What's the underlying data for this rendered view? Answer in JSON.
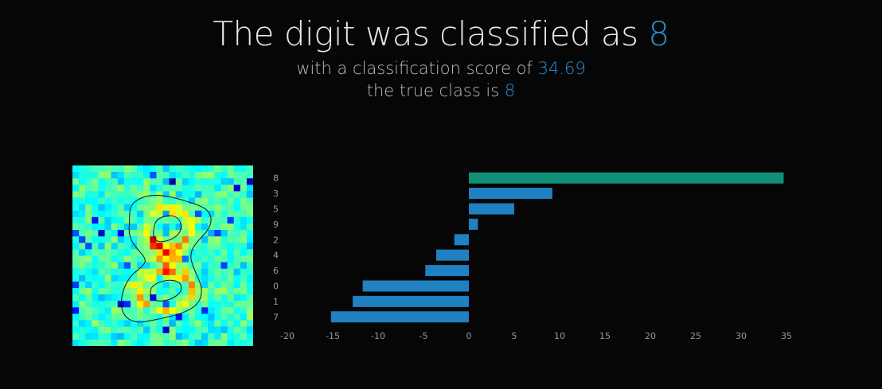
{
  "header": {
    "title_prefix": "The digit was classified as ",
    "predicted_class": "8",
    "score_prefix": "with a classification score of ",
    "score": "34.69",
    "true_prefix": "the true class is ",
    "true_class": "8"
  },
  "colors": {
    "accent": "#2b8fd0",
    "bar_default": "#1f80c2",
    "bar_top": "#109177",
    "tick_text": "#9a9a9a",
    "background": "#060606"
  },
  "chart_data": {
    "type": "bar",
    "orientation": "horizontal",
    "categories": [
      "8",
      "3",
      "5",
      "9",
      "2",
      "4",
      "6",
      "0",
      "1",
      "7"
    ],
    "values": [
      34.69,
      9.2,
      5.0,
      1.0,
      -1.6,
      -3.6,
      -4.8,
      -11.7,
      -12.8,
      -15.2
    ],
    "highlight_category": "8",
    "xlim": [
      -20,
      35
    ],
    "xticks": [
      -20,
      -15,
      -10,
      -5,
      0,
      5,
      10,
      15,
      20,
      25,
      30,
      35
    ],
    "grid": false
  },
  "heatmap": {
    "colormap": "jet",
    "rows": 28,
    "cols": 28,
    "contour": "digit-8-outline"
  }
}
